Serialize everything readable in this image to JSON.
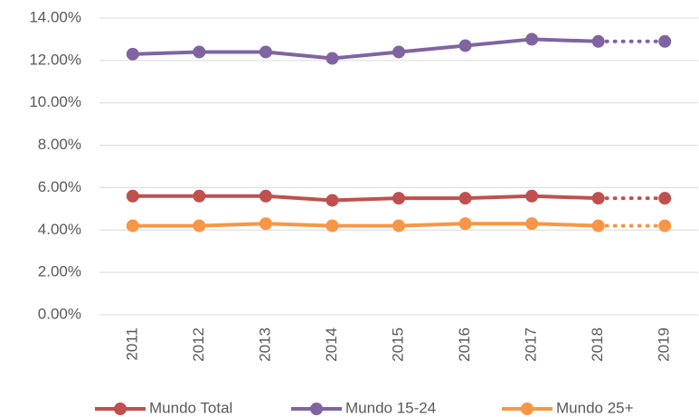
{
  "chart_data": {
    "type": "line",
    "categories": [
      "2011",
      "2012",
      "2013",
      "2014",
      "2015",
      "2016",
      "2017",
      "2018",
      "2019"
    ],
    "series": [
      {
        "name": "Mundo Total",
        "color": "#c0504d",
        "values": [
          5.6,
          5.6,
          5.6,
          5.4,
          5.5,
          5.5,
          5.6,
          5.5,
          5.5
        ]
      },
      {
        "name": "Mundo 15-24",
        "color": "#8064a2",
        "values": [
          12.3,
          12.4,
          12.4,
          12.1,
          12.4,
          12.7,
          13.0,
          12.9,
          12.9
        ]
      },
      {
        "name": "Mundo 25+",
        "color": "#f79646",
        "values": [
          4.2,
          4.2,
          4.3,
          4.2,
          4.2,
          4.3,
          4.3,
          4.2,
          4.2
        ]
      }
    ],
    "dotted_from_index": 7,
    "ylim": [
      0,
      14
    ],
    "yticks": [
      {
        "value": 0,
        "label": "0.00%"
      },
      {
        "value": 2,
        "label": "2.00%"
      },
      {
        "value": 4,
        "label": "4.00%"
      },
      {
        "value": 6,
        "label": "6.00%"
      },
      {
        "value": 8,
        "label": "8.00%"
      },
      {
        "value": 10,
        "label": "10.00%"
      },
      {
        "value": 12,
        "label": "12.00%"
      },
      {
        "value": 14,
        "label": "14.00%"
      }
    ],
    "grid": true,
    "legend": "bottom"
  }
}
